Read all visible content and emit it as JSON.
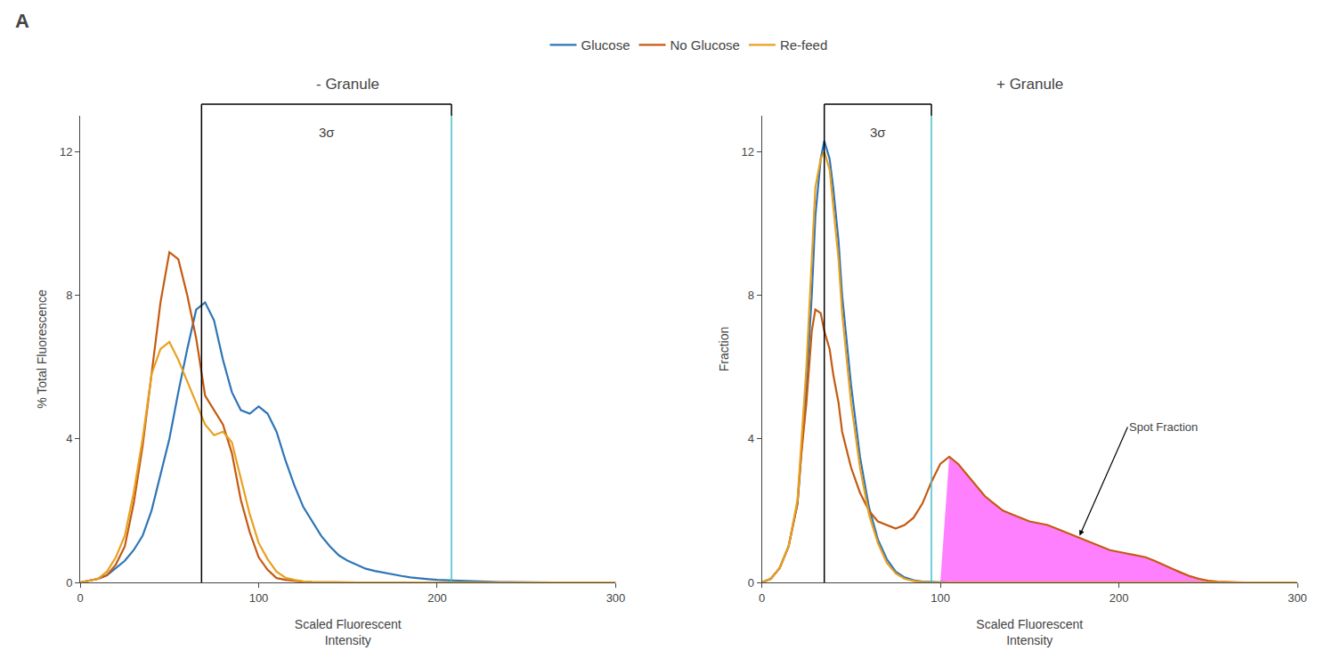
{
  "panel_label": "A",
  "chart_data": [
    {
      "type": "line",
      "title": "- Granule",
      "x_label": "Scaled Fluorescent\nIntensity",
      "y_label": "% Total Fluorescence",
      "xlim": [
        0,
        300
      ],
      "ylim": [
        0,
        13
      ],
      "xticks": [
        0,
        100,
        200,
        300
      ],
      "yticks": [
        0,
        4,
        8,
        12
      ],
      "grid": false,
      "legend": "top",
      "series": [
        {
          "name": "Glucose",
          "color": "#2E75B6",
          "x": [
            0,
            5,
            10,
            15,
            20,
            25,
            30,
            35,
            40,
            45,
            50,
            55,
            60,
            65,
            70,
            75,
            80,
            85,
            90,
            95,
            100,
            105,
            110,
            115,
            120,
            125,
            130,
            135,
            140,
            145,
            150,
            155,
            160,
            165,
            170,
            175,
            180,
            185,
            190,
            195,
            200,
            205,
            210,
            215,
            220,
            225,
            230,
            235,
            240,
            245,
            250,
            255,
            260,
            265,
            270,
            275,
            280,
            285,
            290,
            295,
            300
          ],
          "values": [
            0.0,
            0.05,
            0.1,
            0.2,
            0.4,
            0.6,
            0.9,
            1.3,
            2.0,
            3.0,
            4.0,
            5.3,
            6.5,
            7.6,
            7.8,
            7.3,
            6.2,
            5.3,
            4.8,
            4.7,
            4.9,
            4.7,
            4.2,
            3.4,
            2.7,
            2.1,
            1.7,
            1.3,
            1.0,
            0.75,
            0.6,
            0.5,
            0.38,
            0.32,
            0.27,
            0.22,
            0.18,
            0.14,
            0.11,
            0.09,
            0.07,
            0.06,
            0.05,
            0.04,
            0.03,
            0.02,
            0.02,
            0.01,
            0.01,
            0.005,
            0.0,
            0.0,
            0.0,
            0.0,
            0.0,
            0.0,
            0.0,
            0.0,
            0.0,
            0.0,
            0.0
          ]
        },
        {
          "name": "No Glucose",
          "color": "#C55A11",
          "x": [
            0,
            5,
            10,
            15,
            20,
            25,
            30,
            35,
            40,
            45,
            50,
            55,
            60,
            65,
            70,
            75,
            80,
            85,
            90,
            95,
            100,
            105,
            110,
            115,
            120,
            125,
            130,
            135,
            140,
            145,
            150,
            155,
            160,
            165,
            170,
            175,
            180,
            185,
            190,
            195,
            200,
            205,
            210,
            215,
            220,
            225,
            230,
            235,
            240,
            245,
            250,
            255,
            260,
            265,
            270,
            275,
            280,
            285,
            290,
            295,
            300
          ],
          "values": [
            0.0,
            0.05,
            0.1,
            0.2,
            0.5,
            1.0,
            2.2,
            3.8,
            5.8,
            7.8,
            9.2,
            9.0,
            8.0,
            6.8,
            5.2,
            4.8,
            4.4,
            3.6,
            2.3,
            1.4,
            0.7,
            0.35,
            0.12,
            0.07,
            0.04,
            0.02,
            0.01,
            0.005,
            0.0,
            0.0,
            0.0,
            0.0,
            0.0,
            0.0,
            0.0,
            0.0,
            0.0,
            0.0,
            0.0,
            0.0,
            0.0,
            0.0,
            0.0,
            0.0,
            0.0,
            0.0,
            0.0,
            0.0,
            0.0,
            0.0,
            0.0,
            0.0,
            0.0,
            0.0,
            0.0,
            0.0,
            0.0,
            0.0,
            0.0,
            0.0,
            0.0
          ]
        },
        {
          "name": "Re-feed",
          "color": "#E8A020",
          "x": [
            0,
            5,
            10,
            15,
            20,
            25,
            30,
            35,
            40,
            45,
            50,
            55,
            60,
            65,
            70,
            75,
            80,
            85,
            90,
            95,
            100,
            105,
            110,
            115,
            120,
            125,
            130,
            135,
            140,
            145,
            150,
            155,
            160,
            165,
            170,
            175,
            180,
            185,
            190,
            195,
            200,
            205,
            210,
            215,
            220,
            225,
            230,
            235,
            240,
            245,
            250,
            255,
            260,
            265,
            270,
            275,
            280,
            285,
            290,
            295,
            300
          ],
          "values": [
            0.0,
            0.05,
            0.1,
            0.3,
            0.7,
            1.3,
            2.5,
            4.0,
            5.8,
            6.5,
            6.7,
            6.2,
            5.6,
            5.0,
            4.4,
            4.1,
            4.2,
            3.9,
            2.9,
            1.9,
            1.1,
            0.65,
            0.3,
            0.13,
            0.07,
            0.03,
            0.01,
            0.005,
            0.0,
            0.0,
            0.0,
            0.0,
            0.0,
            0.0,
            0.0,
            0.0,
            0.0,
            0.0,
            0.0,
            0.0,
            0.0,
            0.0,
            0.0,
            0.0,
            0.0,
            0.0,
            0.0,
            0.0,
            0.0,
            0.0,
            0.0,
            0.0,
            0.0,
            0.0,
            0.0,
            0.0,
            0.0,
            0.0,
            0.0,
            0.0,
            0.0
          ]
        }
      ],
      "vertical_lines": [
        {
          "x": 68,
          "color": "#000000"
        },
        {
          "x": 208,
          "color": "#40C0D0"
        }
      ],
      "annotations": [
        {
          "text": "3σ",
          "x": [
            68,
            208
          ]
        }
      ]
    },
    {
      "type": "line",
      "title": "+ Granule",
      "x_label": "Scaled Fluorescent\nIntensity",
      "y_label": "Fraction",
      "xlim": [
        0,
        300
      ],
      "ylim": [
        0,
        13
      ],
      "xticks": [
        0,
        100,
        200,
        300
      ],
      "yticks": [
        0,
        4,
        8,
        12
      ],
      "grid": false,
      "series": [
        {
          "type": "area",
          "color": "#FF80FF",
          "x": [
            95,
            100,
            105,
            110,
            115,
            120,
            125,
            130,
            135,
            140,
            145,
            150,
            155,
            160,
            165,
            170,
            175,
            180,
            185,
            190,
            195,
            200,
            205,
            210,
            215,
            220,
            225,
            230,
            235,
            240,
            245,
            250,
            255,
            260,
            265,
            270,
            275,
            280
          ],
          "values": [
            0.0,
            0.0,
            3.5,
            3.3,
            3.0,
            2.7,
            2.4,
            2.2,
            2.0,
            1.9,
            1.8,
            1.7,
            1.65,
            1.6,
            1.5,
            1.4,
            1.3,
            1.2,
            1.1,
            1.0,
            0.9,
            0.85,
            0.8,
            0.75,
            0.7,
            0.6,
            0.5,
            0.38,
            0.27,
            0.17,
            0.1,
            0.05,
            0.02,
            0.01,
            0.005,
            0.0,
            0.0,
            0.0
          ]
        },
        {
          "name": "Glucose",
          "color": "#2E75B6",
          "x": [
            0,
            5,
            10,
            15,
            20,
            22,
            25,
            28,
            30,
            33,
            35,
            38,
            40,
            43,
            45,
            50,
            55,
            60,
            65,
            70,
            75,
            80,
            85,
            90,
            95,
            100,
            105,
            110,
            115,
            120,
            125,
            130,
            135,
            140,
            145,
            150,
            155,
            160,
            165,
            170,
            175,
            180,
            185,
            190,
            195,
            200,
            205,
            210,
            215,
            220,
            225,
            230,
            235,
            240,
            245,
            250,
            255,
            260,
            265,
            270,
            275,
            280,
            285,
            290,
            295,
            300
          ],
          "values": [
            0.0,
            0.1,
            0.4,
            1.0,
            2.2,
            3.5,
            5.5,
            8.0,
            10.2,
            11.8,
            12.3,
            11.8,
            11.0,
            9.5,
            8.0,
            5.5,
            3.5,
            2.1,
            1.2,
            0.65,
            0.3,
            0.14,
            0.06,
            0.02,
            0.01,
            0.0,
            0.0,
            0.0,
            0.0,
            0.0,
            0.0,
            0.0,
            0.0,
            0.0,
            0.0,
            0.0,
            0.0,
            0.0,
            0.0,
            0.0,
            0.0,
            0.0,
            0.0,
            0.0,
            0.0,
            0.0,
            0.0,
            0.0,
            0.0,
            0.0,
            0.0,
            0.0,
            0.0,
            0.0,
            0.0,
            0.0,
            0.0,
            0.0,
            0.0,
            0.0,
            0.0,
            0.0,
            0.0,
            0.0,
            0.0,
            0.0
          ]
        },
        {
          "name": "No Glucose",
          "color": "#C55A11",
          "x": [
            0,
            5,
            10,
            15,
            20,
            22,
            25,
            28,
            30,
            33,
            35,
            38,
            40,
            43,
            45,
            50,
            55,
            60,
            65,
            70,
            75,
            80,
            85,
            90,
            95,
            100,
            105,
            110,
            115,
            120,
            125,
            130,
            135,
            140,
            145,
            150,
            155,
            160,
            165,
            170,
            175,
            180,
            185,
            190,
            195,
            200,
            205,
            210,
            215,
            220,
            225,
            230,
            235,
            240,
            245,
            250,
            255,
            260,
            265,
            270,
            275,
            280,
            285,
            290,
            295,
            300
          ],
          "values": [
            0.0,
            0.1,
            0.4,
            1.0,
            2.2,
            3.5,
            5.0,
            7.0,
            7.6,
            7.5,
            7.0,
            6.5,
            5.8,
            5.0,
            4.2,
            3.2,
            2.5,
            2.0,
            1.7,
            1.6,
            1.5,
            1.6,
            1.8,
            2.2,
            2.8,
            3.3,
            3.5,
            3.3,
            3.0,
            2.7,
            2.4,
            2.2,
            2.0,
            1.9,
            1.8,
            1.7,
            1.65,
            1.6,
            1.5,
            1.4,
            1.3,
            1.2,
            1.1,
            1.0,
            0.9,
            0.85,
            0.8,
            0.75,
            0.7,
            0.6,
            0.5,
            0.38,
            0.27,
            0.17,
            0.1,
            0.05,
            0.02,
            0.01,
            0.005,
            0.0,
            0.0,
            0.0,
            0.0,
            0.0,
            0.0,
            0.0
          ]
        },
        {
          "name": "Re-feed",
          "color": "#E8A020",
          "x": [
            0,
            5,
            10,
            15,
            20,
            22,
            25,
            28,
            30,
            33,
            35,
            38,
            40,
            43,
            45,
            50,
            55,
            60,
            65,
            70,
            75,
            80,
            85,
            90,
            95,
            100,
            105,
            110,
            115,
            120,
            125,
            130,
            135,
            140,
            145,
            150,
            155,
            160,
            165,
            170,
            175,
            180,
            185,
            190,
            195,
            200,
            205,
            210,
            215,
            220,
            225,
            230,
            235,
            240,
            245,
            250,
            255,
            260,
            265,
            270,
            275,
            280,
            285,
            290,
            295,
            300
          ],
          "values": [
            0.0,
            0.1,
            0.4,
            1.0,
            2.3,
            3.8,
            6.0,
            9.0,
            11.0,
            11.8,
            12.0,
            11.5,
            10.5,
            9.0,
            7.5,
            5.0,
            3.2,
            1.9,
            1.1,
            0.55,
            0.25,
            0.1,
            0.04,
            0.01,
            0.0,
            0.0,
            0.0,
            0.0,
            0.0,
            0.0,
            0.0,
            0.0,
            0.0,
            0.0,
            0.0,
            0.0,
            0.0,
            0.0,
            0.0,
            0.0,
            0.0,
            0.0,
            0.0,
            0.0,
            0.0,
            0.0,
            0.0,
            0.0,
            0.0,
            0.0,
            0.0,
            0.0,
            0.0,
            0.0,
            0.0,
            0.0,
            0.0,
            0.0,
            0.0,
            0.0,
            0.0,
            0.0,
            0.0,
            0.0,
            0.0,
            0.0
          ]
        }
      ],
      "vertical_lines": [
        {
          "x": 35,
          "color": "#000000"
        },
        {
          "x": 95,
          "color": "#40C0D0"
        }
      ],
      "annotations": [
        {
          "text": "3σ",
          "x": [
            35,
            95
          ]
        },
        {
          "text": "Spot Fraction",
          "x": 178,
          "y": 1.3
        }
      ]
    }
  ]
}
